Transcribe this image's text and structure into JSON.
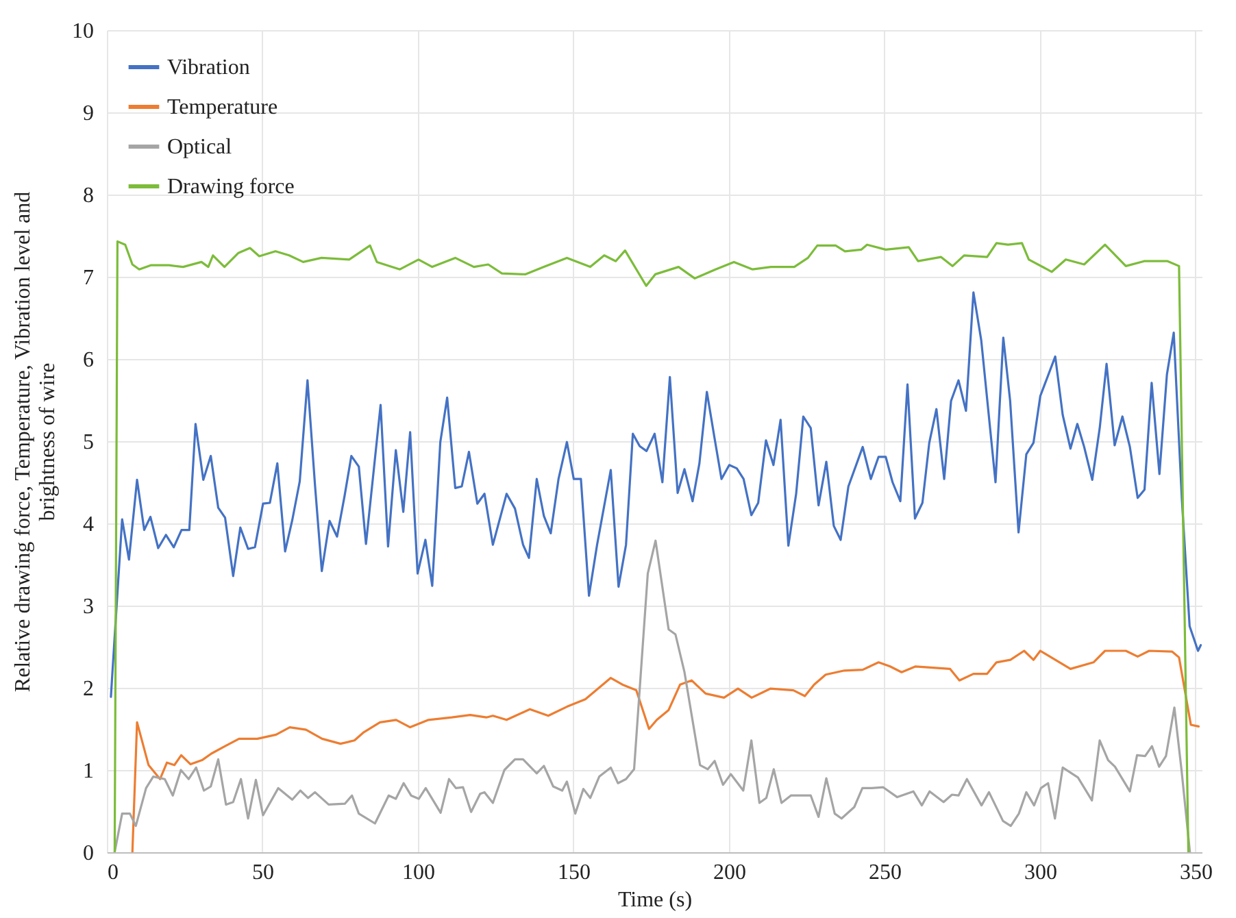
{
  "chart_data": {
    "type": "line",
    "xlabel": "Time (s)",
    "ylabel": "Relative drawing force, Temperature, Vibration level and\nbrightness of wire",
    "xlim": [
      0,
      352
    ],
    "xticks": [
      0,
      50,
      100,
      150,
      200,
      250,
      300,
      350
    ],
    "ylim": [
      0,
      10
    ],
    "yticks": [
      0,
      1,
      2,
      3,
      4,
      5,
      6,
      7,
      8,
      9,
      10
    ],
    "grid": true,
    "legend": "top left",
    "line_style": "solid",
    "series": [
      {
        "name": "Vibration",
        "color": "#4472c4",
        "x": [
          1.3,
          1.8,
          4.9,
          7.1,
          9.7,
          12,
          14,
          16.5,
          19,
          21.5,
          24,
          26.5,
          28.5,
          31,
          33.4,
          35.8,
          38,
          40.6,
          42.9,
          45.4,
          47.6,
          50.2,
          52.4,
          54.8,
          57.3,
          59.6,
          62,
          64.5,
          66.9,
          69.1,
          71.6,
          74,
          76.4,
          78.6,
          81,
          83.3,
          88,
          90.4,
          92.9,
          95.3,
          97.5,
          99.9,
          102.4,
          104.6,
          107.2,
          109.4,
          112,
          114.1,
          116.4,
          119.1,
          121.4,
          124.1,
          128.5,
          131.2,
          133.8,
          135.7,
          138.2,
          140.5,
          142.7,
          145.2,
          147.9,
          150.1,
          152.4,
          155,
          157.6,
          162,
          164.5,
          166.9,
          169.1,
          171.3,
          173.5,
          176.1,
          178.6,
          181,
          183.5,
          185.7,
          188.3,
          190.5,
          192.9,
          195.4,
          197.6,
          200.1,
          202.5,
          204.7,
          207.2,
          209.4,
          211.9,
          214.3,
          216.6,
          219.1,
          221.6,
          223.9,
          226.3,
          228.8,
          231.3,
          233.7,
          235.9,
          238.4,
          243,
          245.6,
          248.1,
          250.4,
          252.6,
          255.1,
          257.4,
          259.8,
          262.2,
          264.4,
          266.7,
          269.2,
          271.4,
          273.8,
          276.2,
          278.6,
          281.1,
          285.7,
          288.2,
          290.4,
          293.1,
          295.6,
          297.9,
          300.1,
          304.9,
          307.3,
          309.8,
          312,
          314.2,
          316.8,
          319.2,
          321.4,
          324,
          326.5,
          328.9,
          331.4,
          333.6,
          335.9,
          338.4,
          340.8,
          343,
          345.6,
          348.1,
          350.8,
          351.7
        ],
        "values": [
          1.89,
          2.2,
          4.05,
          3.56,
          4.53,
          3.92,
          4.08,
          3.7,
          3.86,
          3.71,
          3.92,
          3.92,
          5.21,
          4.53,
          4.82,
          4.19,
          4.07,
          3.36,
          3.95,
          3.69,
          3.71,
          4.24,
          4.25,
          4.73,
          3.66,
          4.04,
          4.51,
          5.74,
          4.47,
          3.42,
          4.03,
          3.84,
          4.33,
          4.82,
          4.69,
          3.75,
          5.44,
          3.72,
          4.89,
          4.14,
          5.11,
          3.39,
          3.8,
          3.24,
          4.99,
          5.53,
          4.43,
          4.45,
          4.87,
          4.24,
          4.36,
          3.74,
          4.36,
          4.18,
          3.74,
          3.58,
          4.54,
          4.09,
          3.88,
          4.54,
          4.99,
          4.54,
          4.54,
          3.12,
          3.74,
          4.65,
          3.23,
          3.74,
          5.09,
          4.94,
          4.88,
          5.09,
          4.5,
          5.78,
          4.37,
          4.66,
          4.27,
          4.73,
          5.6,
          5.03,
          4.54,
          4.71,
          4.67,
          4.54,
          4.1,
          4.25,
          5.01,
          4.71,
          5.26,
          3.73,
          4.36,
          5.3,
          5.16,
          4.22,
          4.75,
          3.97,
          3.8,
          4.45,
          4.93,
          4.54,
          4.81,
          4.81,
          4.5,
          4.27,
          5.69,
          4.06,
          4.25,
          4.98,
          5.39,
          4.54,
          5.49,
          5.74,
          5.37,
          6.81,
          6.23,
          4.5,
          6.26,
          5.49,
          3.89,
          4.84,
          4.98,
          5.55,
          6.03,
          5.32,
          4.91,
          5.21,
          4.93,
          4.53,
          5.16,
          5.94,
          4.95,
          5.3,
          4.93,
          4.31,
          4.41,
          5.71,
          4.6,
          5.81,
          6.32,
          4.3,
          2.75,
          2.45,
          2.52
        ]
      },
      {
        "name": "Temperature",
        "color": "#ed7d31",
        "x": [
          8.2,
          9.7,
          13.4,
          17.1,
          19.3,
          21.7,
          23.9,
          26.9,
          30.6,
          33.6,
          38,
          42.5,
          48.4,
          54.4,
          58.8,
          64,
          69.2,
          75.1,
          79.6,
          82.6,
          87.8,
          93,
          97.5,
          103.4,
          110.9,
          116.8,
          122,
          124.1,
          128.5,
          136,
          141.9,
          147.9,
          153.8,
          162,
          165.7,
          170.2,
          174.3,
          176.8,
          180.6,
          184.3,
          188,
          192.5,
          198.4,
          202.9,
          207.3,
          213.3,
          220.7,
          224.4,
          227.4,
          231.1,
          237.1,
          243,
          248.1,
          251.8,
          255.5,
          260,
          271.1,
          274.1,
          278.6,
          283,
          286,
          290.5,
          294.9,
          297.9,
          300.1,
          309.8,
          317.2,
          320.9,
          327.6,
          331.4,
          335.1,
          342.5,
          344.7,
          348.5,
          351
        ],
        "values": [
          0,
          1.58,
          1.06,
          0.89,
          1.09,
          1.06,
          1.18,
          1.07,
          1.12,
          1.2,
          1.29,
          1.38,
          1.38,
          1.43,
          1.52,
          1.49,
          1.38,
          1.32,
          1.36,
          1.46,
          1.58,
          1.61,
          1.52,
          1.61,
          1.64,
          1.67,
          1.64,
          1.66,
          1.61,
          1.74,
          1.66,
          1.77,
          1.86,
          2.12,
          2.04,
          1.97,
          1.5,
          1.61,
          1.73,
          2.04,
          2.09,
          1.93,
          1.88,
          1.99,
          1.88,
          1.99,
          1.97,
          1.9,
          2.04,
          2.16,
          2.21,
          2.22,
          2.31,
          2.26,
          2.19,
          2.26,
          2.23,
          2.09,
          2.17,
          2.17,
          2.31,
          2.34,
          2.45,
          2.34,
          2.45,
          2.23,
          2.31,
          2.45,
          2.45,
          2.38,
          2.45,
          2.44,
          2.37,
          1.55,
          1.53
        ]
      },
      {
        "name": "Optical",
        "color": "#a5a5a5",
        "x": [
          2.5,
          4.9,
          7.4,
          9.3,
          12.6,
          14.9,
          18.6,
          21.2,
          23.8,
          26.3,
          28.7,
          31.2,
          33.4,
          35.8,
          38.3,
          40.6,
          43.1,
          45.4,
          47.9,
          50.2,
          55.1,
          59.6,
          62.2,
          64.7,
          66.9,
          71.3,
          76.5,
          78.8,
          81,
          86.2,
          90.6,
          92.9,
          95.4,
          97.8,
          100.3,
          102.5,
          107.3,
          110,
          112.2,
          114.5,
          117.1,
          120,
          121.4,
          124.1,
          127.8,
          131.2,
          133.8,
          138.2,
          140.5,
          143.5,
          146.4,
          147.9,
          150.6,
          153.2,
          155.4,
          158.3,
          162,
          164.3,
          166.9,
          169.5,
          173.9,
          176.4,
          180.6,
          182.8,
          185.7,
          190.7,
          193.2,
          195.4,
          198.1,
          200.6,
          204.6,
          207.2,
          209.8,
          212,
          214.4,
          216.9,
          219.9,
          223.9,
          226.3,
          228.8,
          231.3,
          234,
          236.2,
          240.3,
          242.9,
          245.9,
          249.6,
          254.1,
          259.3,
          262,
          264.5,
          269,
          271.7,
          273.8,
          276.5,
          281.2,
          283.6,
          288.1,
          290.6,
          293.2,
          295.6,
          298.1,
          300.3,
          302.6,
          304.8,
          307.3,
          312.2,
          316.7,
          319.2,
          321.9,
          324.1,
          328.9,
          331.2,
          333.8,
          336,
          338.3,
          340.5,
          343.2,
          345.5,
          348.2
        ],
        "values": [
          0,
          0.47,
          0.47,
          0.32,
          0.78,
          0.92,
          0.89,
          0.69,
          1.0,
          0.89,
          1.03,
          0.75,
          0.8,
          1.13,
          0.58,
          0.61,
          0.89,
          0.41,
          0.88,
          0.45,
          0.78,
          0.64,
          0.75,
          0.66,
          0.73,
          0.58,
          0.59,
          0.69,
          0.47,
          0.35,
          0.69,
          0.65,
          0.84,
          0.69,
          0.65,
          0.78,
          0.48,
          0.89,
          0.78,
          0.79,
          0.49,
          0.71,
          0.73,
          0.6,
          1.0,
          1.13,
          1.13,
          0.96,
          1.05,
          0.8,
          0.75,
          0.86,
          0.47,
          0.77,
          0.66,
          0.92,
          1.03,
          0.84,
          0.89,
          1.01,
          3.39,
          3.79,
          2.71,
          2.65,
          2.19,
          1.06,
          1.01,
          1.11,
          0.82,
          0.95,
          0.75,
          1.36,
          0.6,
          0.66,
          1.01,
          0.6,
          0.69,
          0.69,
          0.69,
          0.43,
          0.9,
          0.47,
          0.41,
          0.55,
          0.78,
          0.78,
          0.79,
          0.67,
          0.74,
          0.57,
          0.74,
          0.61,
          0.7,
          0.69,
          0.89,
          0.57,
          0.73,
          0.38,
          0.32,
          0.47,
          0.73,
          0.57,
          0.78,
          0.84,
          0.41,
          1.03,
          0.91,
          0.63,
          1.36,
          1.12,
          1.04,
          0.74,
          1.18,
          1.17,
          1.29,
          1.04,
          1.17,
          1.76,
          1.0,
          0
        ]
      },
      {
        "name": "Drawing force",
        "color": "#7cbc3a",
        "x": [
          2.5,
          3.4,
          5.9,
          8.2,
          10.4,
          14.1,
          20,
          24.5,
          30.4,
          32.6,
          34.1,
          37.8,
          42.3,
          46,
          49,
          54.2,
          58.6,
          63.1,
          69,
          77.9,
          84.6,
          86.8,
          94.2,
          100.2,
          104.6,
          112,
          118,
          122.6,
          127,
          134.5,
          140.5,
          147.9,
          155.4,
          159.9,
          163.6,
          166.6,
          173.4,
          176.3,
          183.8,
          189,
          195.7,
          201.6,
          207.6,
          213.5,
          221,
          225.4,
          228.4,
          234.3,
          237.3,
          242.5,
          244.4,
          250.4,
          257.8,
          260.8,
          268.2,
          271.9,
          275.6,
          283,
          286,
          289.7,
          294.2,
          296.4,
          303.8,
          308.3,
          314.2,
          320.9,
          327.6,
          333.5,
          341,
          344.7,
          347.7
        ],
        "values": [
          0,
          7.43,
          7.39,
          7.15,
          7.09,
          7.14,
          7.14,
          7.12,
          7.18,
          7.12,
          7.26,
          7.12,
          7.29,
          7.35,
          7.25,
          7.31,
          7.26,
          7.18,
          7.23,
          7.21,
          7.38,
          7.18,
          7.09,
          7.21,
          7.12,
          7.23,
          7.12,
          7.15,
          7.04,
          7.03,
          7.12,
          7.23,
          7.12,
          7.26,
          7.19,
          7.32,
          6.89,
          7.03,
          7.12,
          6.98,
          7.09,
          7.18,
          7.09,
          7.12,
          7.12,
          7.23,
          7.38,
          7.38,
          7.31,
          7.33,
          7.39,
          7.33,
          7.36,
          7.19,
          7.24,
          7.13,
          7.26,
          7.24,
          7.41,
          7.39,
          7.41,
          7.21,
          7.06,
          7.21,
          7.15,
          7.39,
          7.13,
          7.19,
          7.19,
          7.13,
          0
        ]
      }
    ]
  }
}
